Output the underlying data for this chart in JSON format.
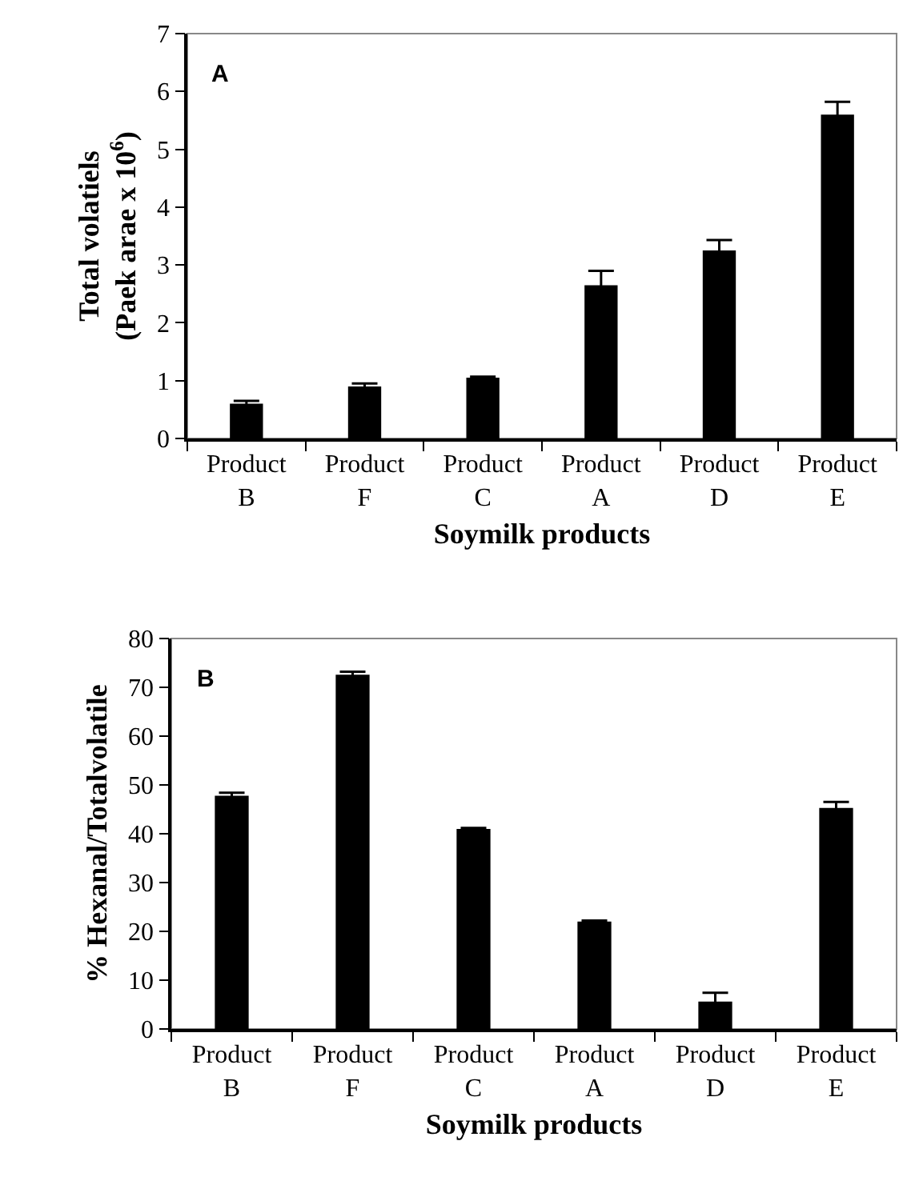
{
  "chart_data": [
    {
      "type": "bar",
      "xlabel": "Soymilk products",
      "ylabel": "Total volatiels\n(Paek arae x 10$^{6}$)",
      "annotations": [
        "A"
      ],
      "categories": [
        "Product B",
        "Product F",
        "Product C",
        "Product A",
        "Product D",
        "Product E"
      ],
      "values": [
        0.6,
        0.9,
        1.05,
        2.65,
        3.25,
        5.6
      ],
      "errors": [
        0.05,
        0.05,
        0.02,
        0.25,
        0.18,
        0.22
      ],
      "color": "#000000",
      "ylim": [
        0,
        7
      ],
      "yticks": [
        0,
        1,
        2,
        3,
        4,
        5,
        6,
        7
      ]
    },
    {
      "type": "bar",
      "xlabel": "Soymilk products",
      "ylabel": "% Hexanal/Totalvolatile",
      "annotations": [
        "B"
      ],
      "categories": [
        "Product B",
        "Product F",
        "Product C",
        "Product A",
        "Product D",
        "Product E"
      ],
      "values": [
        47.8,
        72.6,
        41,
        22,
        5.6,
        45.3
      ],
      "errors": [
        0.6,
        0.6,
        0.2,
        0.2,
        1.8,
        1.2
      ],
      "color": "#000000",
      "ylim": [
        0,
        80
      ],
      "yticks": [
        0,
        10,
        20,
        30,
        40,
        50,
        60,
        70,
        80
      ]
    }
  ]
}
